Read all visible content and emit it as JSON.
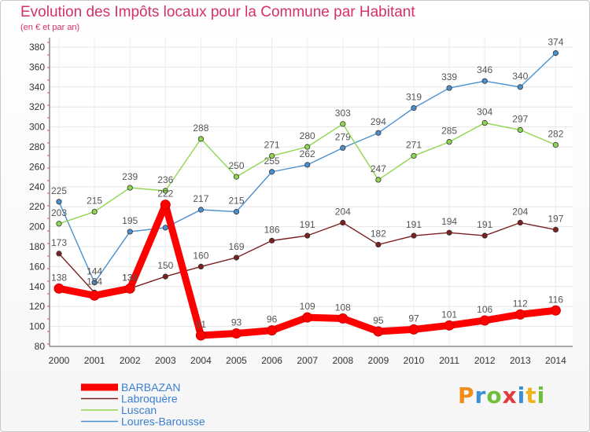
{
  "header": {
    "title": "Evolution des Impôts locaux pour la Commune par Habitant",
    "subtitle": "(en € et par an)"
  },
  "logo": {
    "letters": [
      "P",
      "r",
      "o",
      "x",
      "i",
      "t",
      "i"
    ]
  },
  "chart_data": {
    "type": "line",
    "x": [
      "2000",
      "2001",
      "2002",
      "2003",
      "2004",
      "2005",
      "2006",
      "2007",
      "2008",
      "2009",
      "2010",
      "2011",
      "2012",
      "2013",
      "2014"
    ],
    "ylim": [
      80,
      380
    ],
    "yticks": [
      80,
      100,
      120,
      140,
      160,
      180,
      200,
      220,
      240,
      260,
      280,
      300,
      320,
      340,
      360,
      380
    ],
    "grid": true,
    "legend_position": "bottom-left",
    "series": [
      {
        "name": "Loures-Barousse",
        "color": "#4a8fcf",
        "values": [
          225,
          144,
          195,
          199,
          217,
          215,
          255,
          262,
          279,
          294,
          319,
          339,
          346,
          340,
          374
        ]
      },
      {
        "name": "Luscan",
        "color": "#8fd650",
        "values": [
          203,
          215,
          239,
          236,
          288,
          250,
          271,
          280,
          303,
          247,
          271,
          285,
          304,
          297,
          282
        ]
      },
      {
        "name": "Labroquère",
        "color": "#7a2020",
        "values": [
          173,
          134,
          138,
          150,
          160,
          169,
          186,
          191,
          204,
          182,
          191,
          194,
          191,
          204,
          197
        ]
      },
      {
        "name": "BARBAZAN",
        "color": "#ff0000",
        "values": [
          138,
          131,
          138,
          222,
          91,
          93,
          96,
          109,
          108,
          95,
          97,
          101,
          106,
          112,
          116
        ]
      }
    ],
    "labels": [
      {
        "series": "Loures-Barousse",
        "text": [
          "225",
          "144",
          "195",
          "",
          "217",
          "215",
          "255",
          "262",
          "279",
          "294",
          "319",
          "339",
          "346",
          "340",
          "374"
        ]
      },
      {
        "series": "Luscan",
        "text": [
          "203",
          "215",
          "239",
          "236",
          "288",
          "250",
          "271",
          "280",
          "303",
          "247",
          "271",
          "285",
          "304",
          "297",
          "282"
        ]
      },
      {
        "series": "Labroquère",
        "text": [
          "173",
          "134",
          "138",
          "150",
          "160",
          "169",
          "186",
          "191",
          "204",
          "182",
          "191",
          "194",
          "191",
          "204",
          "197"
        ]
      },
      {
        "series": "BARBAZAN",
        "text": [
          "138",
          "",
          "138",
          "222",
          "91",
          "93",
          "96",
          "109",
          "108",
          "95",
          "97",
          "101",
          "106",
          "112",
          "116"
        ]
      }
    ]
  }
}
